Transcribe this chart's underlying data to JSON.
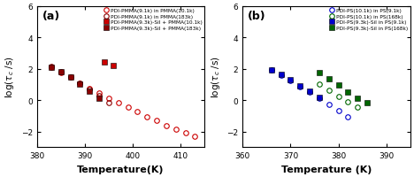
{
  "panel_a": {
    "title": "(a)",
    "xlabel": "Temperature(K)",
    "xlim": [
      380,
      415
    ],
    "ylim": [
      -3,
      6
    ],
    "yticks": [
      -2,
      0,
      2,
      4,
      6
    ],
    "xticks": [
      380,
      390,
      400,
      410
    ],
    "series": [
      {
        "label": "PDI-PMMA(9.1k) in PMMA(10.1k)",
        "marker": "o",
        "filled": false,
        "color": "#cc0000",
        "x": [
          383,
          385,
          387,
          389,
          391,
          393,
          395,
          397,
          399,
          401,
          403,
          405,
          407,
          409,
          411,
          413
        ],
        "y": [
          2.1,
          1.75,
          1.45,
          1.1,
          0.75,
          0.45,
          0.15,
          -0.15,
          -0.45,
          -0.75,
          -1.05,
          -1.3,
          -1.6,
          -1.85,
          -2.1,
          -2.3
        ]
      },
      {
        "label": "PDI-PMMA(9.1k) in PMMA(183k)",
        "marker": "o",
        "filled": false,
        "color": "#8b0000",
        "x": [
          383,
          385,
          387,
          389,
          391,
          393,
          395
        ],
        "y": [
          2.15,
          1.8,
          1.5,
          1.1,
          0.7,
          0.3,
          -0.15
        ]
      },
      {
        "label": "PDI-PMMA(9.3k)-Sil + PMMA(10.1k)",
        "marker": "s",
        "filled": true,
        "color": "#cc0000",
        "x": [
          394,
          396
        ],
        "y": [
          2.45,
          2.2
        ]
      },
      {
        "label": "PDI-PMMA(9.3k)-Sil + PMMA(183k)",
        "marker": "s",
        "filled": true,
        "color": "#8b0000",
        "x": [
          383,
          385,
          387,
          389,
          391,
          393
        ],
        "y": [
          2.1,
          1.8,
          1.45,
          1.05,
          0.6,
          0.1
        ]
      }
    ],
    "curves": [
      {
        "color": "#cc0000",
        "T0": 356,
        "A": -13.5,
        "B": 1150,
        "x0": 380,
        "x1": 415
      },
      {
        "color": "#8b0000",
        "T0": 370,
        "A": -12.5,
        "B": 800,
        "x0": 380,
        "x1": 398
      }
    ]
  },
  "panel_b": {
    "title": "(b)",
    "xlabel": "Temperature (K)",
    "xlim": [
      360,
      395
    ],
    "ylim": [
      -3,
      6
    ],
    "yticks": [
      -2,
      0,
      2,
      4,
      6
    ],
    "xticks": [
      360,
      370,
      380,
      390
    ],
    "series": [
      {
        "label": "PDI-PS(10.1k) in PS(9.1k)",
        "marker": "o",
        "filled": false,
        "color": "#0000cc",
        "x": [
          366,
          368,
          370,
          372,
          374,
          376,
          378,
          380,
          382
        ],
        "y": [
          1.9,
          1.6,
          1.25,
          0.85,
          0.5,
          0.1,
          -0.25,
          -0.65,
          -1.05
        ]
      },
      {
        "label": "PDI-PS(10.1k) in PS(168k)",
        "marker": "o",
        "filled": false,
        "color": "#006600",
        "x": [
          376,
          378,
          380,
          382,
          384
        ],
        "y": [
          1.0,
          0.65,
          0.25,
          -0.1,
          -0.45
        ]
      },
      {
        "label": "PDI-PS(9.3k)-Sil in PS(9.1k)",
        "marker": "s",
        "filled": true,
        "color": "#0000cc",
        "x": [
          366,
          368,
          370,
          372,
          374,
          376
        ],
        "y": [
          1.95,
          1.65,
          1.3,
          0.9,
          0.55,
          0.2
        ]
      },
      {
        "label": "PDI-PS(9.3k)-Sil in PS(168k)",
        "marker": "s",
        "filled": true,
        "color": "#006600",
        "x": [
          376,
          378,
          380,
          382,
          384,
          386
        ],
        "y": [
          1.75,
          1.35,
          0.95,
          0.5,
          0.1,
          -0.15
        ]
      }
    ],
    "curves": [
      {
        "color": "#0000cc",
        "T0": 340,
        "A": -15.5,
        "B": 1250,
        "x0": 360,
        "x1": 395
      },
      {
        "color": "#006600",
        "T0": 348,
        "A": -14.5,
        "B": 1380,
        "x0": 360,
        "x1": 395
      }
    ]
  }
}
